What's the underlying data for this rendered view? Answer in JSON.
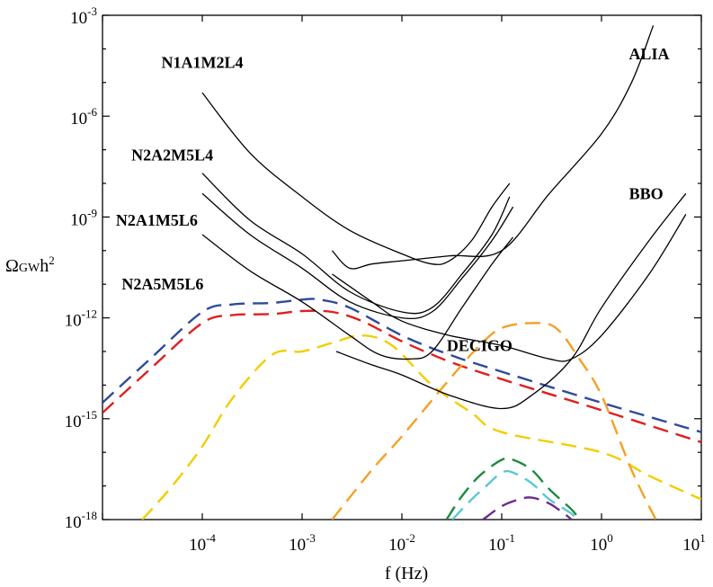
{
  "chart_data": {
    "type": "line",
    "xscale": "log",
    "yscale": "log",
    "xlabel": "f (Hz)",
    "ylabel": {
      "main": "Ω",
      "sub": "GW",
      "rest": "h",
      "sup": "2"
    },
    "xlim": [
      1e-05,
      10
    ],
    "ylim": [
      1e-18,
      0.001
    ],
    "x_ticks": [
      {
        "base": "10",
        "exp": "-4",
        "value": 0.0001
      },
      {
        "base": "10",
        "exp": "-3",
        "value": 0.001
      },
      {
        "base": "10",
        "exp": "-2",
        "value": 0.01
      },
      {
        "base": "10",
        "exp": "-1",
        "value": 0.1
      },
      {
        "base": "10",
        "exp": "0",
        "value": 1
      },
      {
        "base": "10",
        "exp": "1",
        "value": 10
      }
    ],
    "y_ticks": [
      {
        "base": "10",
        "exp": "-3",
        "value": 0.001
      },
      {
        "base": "10",
        "exp": "-6",
        "value": 1e-06
      },
      {
        "base": "10",
        "exp": "-9",
        "value": 1e-09
      },
      {
        "base": "10",
        "exp": "-12",
        "value": 1e-12
      },
      {
        "base": "10",
        "exp": "-15",
        "value": 1e-15
      },
      {
        "base": "10",
        "exp": "-18",
        "value": 1e-18
      }
    ],
    "annotations": [
      {
        "text": "N1A1M2L4",
        "x": 0.0001,
        "y": 4e-05
      },
      {
        "text": "N2A2M5L4",
        "x": 5e-05,
        "y": 7e-08
      },
      {
        "text": "N2A1M5L6",
        "x": 3.5e-05,
        "y": 8e-10
      },
      {
        "text": "N2A5M5L6",
        "x": 4e-05,
        "y": 1e-11
      },
      {
        "text": "ALIA",
        "x": 3.0,
        "y": 7e-05
      },
      {
        "text": "BBO",
        "x": 2.8,
        "y": 5e-09
      },
      {
        "text": "DECIGO",
        "x": 0.06,
        "y": 1.5e-13
      }
    ],
    "sensitivity_curves": [
      {
        "label": "N1A1M2L4",
        "points": [
          [
            0.0001,
            5e-06
          ],
          [
            0.0003,
            8e-08
          ],
          [
            0.001,
            4e-09
          ],
          [
            0.003,
            4e-10
          ],
          [
            0.01,
            8e-11
          ],
          [
            0.02,
            4e-11
          ],
          [
            0.03,
            5e-11
          ],
          [
            0.05,
            2e-10
          ],
          [
            0.08,
            2e-09
          ],
          [
            0.12,
            1e-08
          ]
        ]
      },
      {
        "label": "N2A2M5L4",
        "points": [
          [
            0.0001,
            2e-08
          ],
          [
            0.0003,
            8e-10
          ],
          [
            0.001,
            8e-11
          ],
          [
            0.003,
            6e-12
          ],
          [
            0.01,
            1.5e-12
          ],
          [
            0.02,
            2e-12
          ],
          [
            0.04,
            2e-11
          ],
          [
            0.08,
            3e-10
          ],
          [
            0.12,
            4e-09
          ]
        ]
      },
      {
        "label": "N2A1M5L6",
        "points": [
          [
            0.0001,
            5e-09
          ],
          [
            0.0003,
            3e-10
          ],
          [
            0.001,
            3e-11
          ],
          [
            0.003,
            3e-12
          ],
          [
            0.01,
            1e-12
          ],
          [
            0.02,
            1.5e-12
          ],
          [
            0.04,
            1.5e-11
          ],
          [
            0.08,
            2e-10
          ],
          [
            0.13,
            2e-09
          ]
        ]
      },
      {
        "label": "N2A5M5L6",
        "points": [
          [
            0.0001,
            3e-10
          ],
          [
            0.0003,
            2.5e-11
          ],
          [
            0.001,
            3e-12
          ],
          [
            0.003,
            3e-13
          ],
          [
            0.006,
            8e-14
          ],
          [
            0.012,
            6e-14
          ],
          [
            0.02,
            1e-13
          ],
          [
            0.04,
            2e-12
          ],
          [
            0.08,
            4e-11
          ],
          [
            0.13,
            2.5e-10
          ]
        ]
      },
      {
        "label": "ALIA",
        "points": [
          [
            0.002,
            1e-10
          ],
          [
            0.003,
            3e-11
          ],
          [
            0.005,
            4e-11
          ],
          [
            0.01,
            5e-11
          ],
          [
            0.03,
            7e-11
          ],
          [
            0.1,
            1e-10
          ],
          [
            0.3,
            5e-09
          ],
          [
            1,
            3e-07
          ],
          [
            2,
            1e-05
          ],
          [
            3.3,
            0.0005
          ]
        ]
      },
      {
        "label": "DECIGO",
        "points": [
          [
            0.002,
            2e-11
          ],
          [
            0.005,
            3e-12
          ],
          [
            0.01,
            8e-13
          ],
          [
            0.03,
            3e-13
          ],
          [
            0.1,
            1.5e-13
          ],
          [
            0.3,
            6e-14
          ],
          [
            0.5,
            6e-14
          ],
          [
            1,
            3e-13
          ],
          [
            3,
            2e-11
          ],
          [
            7,
            1.2e-09
          ]
        ]
      },
      {
        "label": "BBO",
        "points": [
          [
            0.0022,
            1e-13
          ],
          [
            0.005,
            4e-14
          ],
          [
            0.01,
            2e-14
          ],
          [
            0.03,
            5e-15
          ],
          [
            0.1,
            2e-15
          ],
          [
            0.2,
            5e-15
          ],
          [
            0.5,
            6e-14
          ],
          [
            1,
            2e-12
          ],
          [
            3,
            2e-10
          ],
          [
            7,
            5e-09
          ]
        ]
      }
    ],
    "spectra": [
      {
        "color": "#2e4b9b",
        "points": [
          [
            1e-05,
            3e-15
          ],
          [
            3e-05,
            6e-14
          ],
          [
            0.0001,
            1.5e-12
          ],
          [
            0.0002,
            2.5e-12
          ],
          [
            0.0005,
            2.8e-12
          ],
          [
            0.001,
            3.5e-12
          ],
          [
            0.0015,
            3.5e-12
          ],
          [
            0.003,
            2e-12
          ],
          [
            0.01,
            3e-13
          ],
          [
            0.03,
            8e-14
          ],
          [
            0.1,
            2.5e-14
          ],
          [
            1,
            3e-15
          ],
          [
            10,
            4e-16
          ]
        ]
      },
      {
        "color": "#e01e1e",
        "points": [
          [
            1e-05,
            1.5e-15
          ],
          [
            3e-05,
            3e-14
          ],
          [
            0.0001,
            7e-13
          ],
          [
            0.0002,
            1.2e-12
          ],
          [
            0.0005,
            1.3e-12
          ],
          [
            0.001,
            1.6e-12
          ],
          [
            0.002,
            1.5e-12
          ],
          [
            0.004,
            8e-13
          ],
          [
            0.01,
            2e-13
          ],
          [
            0.03,
            5e-14
          ],
          [
            0.1,
            1.5e-14
          ],
          [
            1,
            1.8e-15
          ],
          [
            10,
            2e-16
          ]
        ]
      },
      {
        "color": "#f2cd00",
        "points": [
          [
            2.5e-05,
            1e-18
          ],
          [
            5e-05,
            1e-17
          ],
          [
            0.0001,
            1.5e-16
          ],
          [
            0.0002,
            4e-15
          ],
          [
            0.0005,
            8e-14
          ],
          [
            0.001,
            1e-13
          ],
          [
            0.002,
            1.8e-13
          ],
          [
            0.004,
            3e-13
          ],
          [
            0.008,
            1.5e-13
          ],
          [
            0.02,
            1e-14
          ],
          [
            0.05,
            1.5e-15
          ],
          [
            0.1,
            4e-16
          ],
          [
            1,
            1e-16
          ],
          [
            3,
            2e-17
          ],
          [
            10,
            4e-18
          ]
        ]
      },
      {
        "color": "#f5a023",
        "points": [
          [
            0.002,
            1e-18
          ],
          [
            0.005,
            3e-17
          ],
          [
            0.01,
            3e-16
          ],
          [
            0.03,
            1.5e-14
          ],
          [
            0.06,
            1.5e-13
          ],
          [
            0.1,
            5e-13
          ],
          [
            0.2,
            7e-13
          ],
          [
            0.35,
            5e-13
          ],
          [
            0.6,
            6e-14
          ],
          [
            1,
            5e-15
          ],
          [
            2,
            3e-17
          ],
          [
            3.5,
            1e-18
          ]
        ]
      },
      {
        "color": "#1e8a3c",
        "points": [
          [
            0.028,
            1e-18
          ],
          [
            0.04,
            5e-18
          ],
          [
            0.06,
            2e-17
          ],
          [
            0.1,
            6e-17
          ],
          [
            0.13,
            6e-17
          ],
          [
            0.2,
            3e-17
          ],
          [
            0.3,
            8e-18
          ],
          [
            0.5,
            2e-18
          ],
          [
            0.6,
            1e-18
          ]
        ]
      },
      {
        "color": "#5bc8d0",
        "points": [
          [
            0.032,
            1e-18
          ],
          [
            0.05,
            4e-18
          ],
          [
            0.07,
            1e-17
          ],
          [
            0.1,
            2.5e-17
          ],
          [
            0.13,
            2.5e-17
          ],
          [
            0.2,
            1.2e-17
          ],
          [
            0.3,
            4e-18
          ],
          [
            0.5,
            1.5e-18
          ],
          [
            0.55,
            1e-18
          ]
        ]
      },
      {
        "color": "#6d2a8e",
        "points": [
          [
            0.065,
            1e-18
          ],
          [
            0.1,
            2.5e-18
          ],
          [
            0.15,
            4e-18
          ],
          [
            0.2,
            4.5e-18
          ],
          [
            0.3,
            3e-18
          ],
          [
            0.45,
            1.3e-18
          ],
          [
            0.5,
            1e-18
          ]
        ]
      }
    ]
  }
}
